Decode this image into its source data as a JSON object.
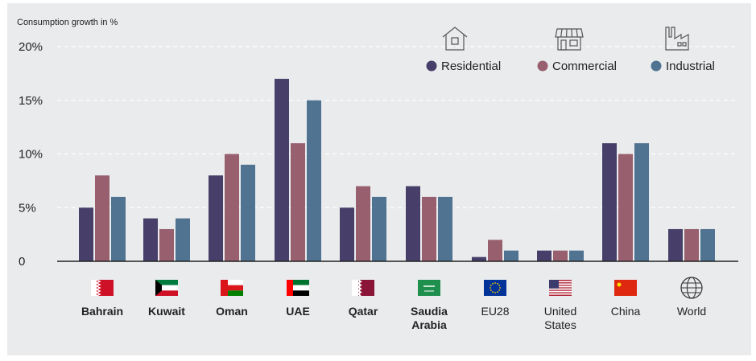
{
  "chart_data": {
    "type": "bar",
    "ylabel": "Consumption growth in %",
    "ylim": [
      0,
      20
    ],
    "yticks": [
      {
        "value": 0,
        "label": "0"
      },
      {
        "value": 5,
        "label": "5%"
      },
      {
        "value": 10,
        "label": "10%"
      },
      {
        "value": 15,
        "label": "15%"
      },
      {
        "value": 20,
        "label": "20%"
      }
    ],
    "grid": true,
    "legend_position": "top-right",
    "categories": [
      {
        "label": "Bahrain",
        "lines": [
          "Bahrain"
        ],
        "bold": true,
        "flag": "bahrain-flag"
      },
      {
        "label": "Kuwait",
        "lines": [
          "Kuwait"
        ],
        "bold": true,
        "flag": "kuwait-flag"
      },
      {
        "label": "Oman",
        "lines": [
          "Oman"
        ],
        "bold": true,
        "flag": "oman-flag"
      },
      {
        "label": "UAE",
        "lines": [
          "UAE"
        ],
        "bold": true,
        "flag": "uae-flag"
      },
      {
        "label": "Qatar",
        "lines": [
          "Qatar"
        ],
        "bold": true,
        "flag": "qatar-flag"
      },
      {
        "label": "Saudia Arabia",
        "lines": [
          "Saudia",
          "Arabia"
        ],
        "bold": true,
        "flag": "saudi-flag"
      },
      {
        "label": "EU28",
        "lines": [
          "EU28"
        ],
        "bold": false,
        "flag": "eu-flag"
      },
      {
        "label": "United States",
        "lines": [
          "United",
          "States"
        ],
        "bold": false,
        "flag": "us-flag"
      },
      {
        "label": "China",
        "lines": [
          "China"
        ],
        "bold": false,
        "flag": "china-flag"
      },
      {
        "label": "World",
        "lines": [
          "World"
        ],
        "bold": false,
        "flag": "globe-icon"
      }
    ],
    "series": [
      {
        "name": "Residential",
        "color": "#473f69",
        "icon": "house-icon",
        "values": [
          5,
          4,
          8,
          17,
          5,
          7,
          0.4,
          1,
          11,
          3
        ]
      },
      {
        "name": "Commercial",
        "color": "#98606e",
        "icon": "storefront-icon",
        "values": [
          8,
          3,
          10,
          11,
          7,
          6,
          2,
          1,
          10,
          3
        ]
      },
      {
        "name": "Industrial",
        "color": "#4f7390",
        "icon": "factory-icon",
        "values": [
          6,
          4,
          9,
          15,
          6,
          6,
          1,
          1,
          11,
          3
        ]
      }
    ]
  }
}
